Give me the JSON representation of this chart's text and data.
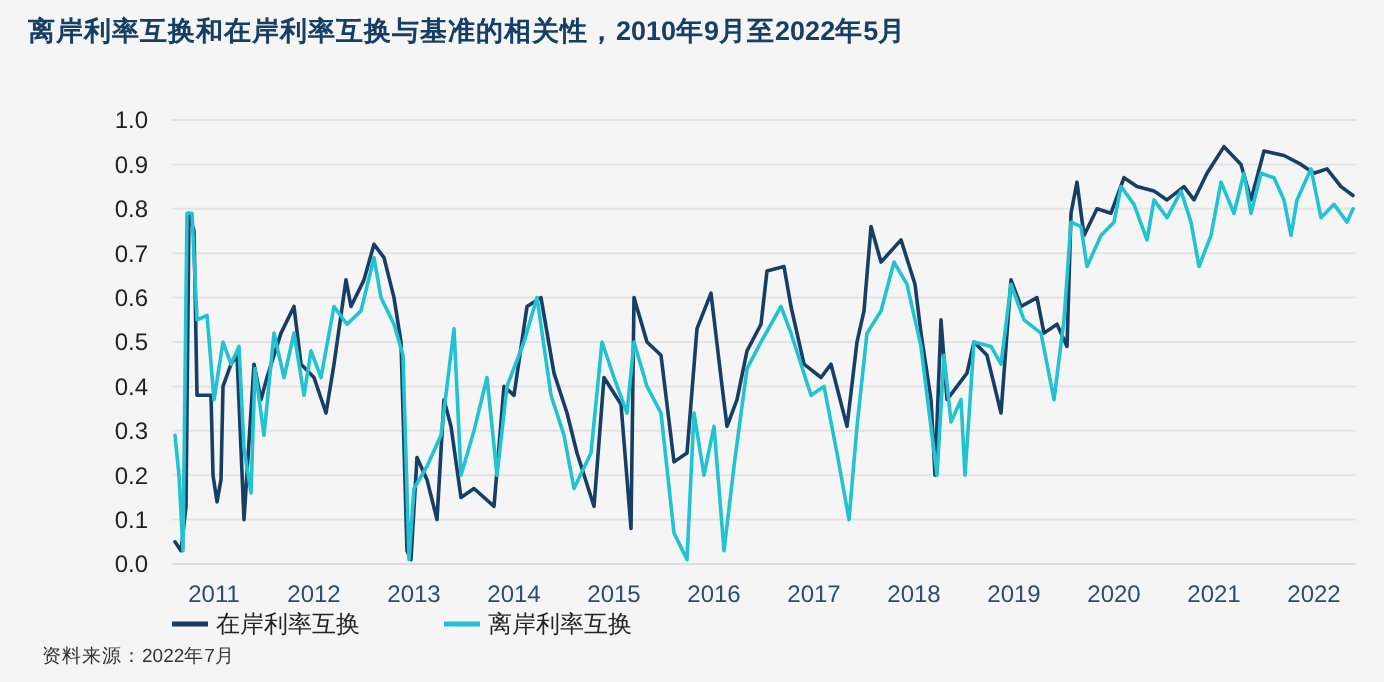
{
  "chart_data": {
    "type": "line",
    "title": "离岸利率互换和在岸利率互换与基准的相关性，2010年9月至2022年5月",
    "xlim": [
      2010.58,
      2022.42
    ],
    "xticks": [
      2011,
      2012,
      2013,
      2014,
      2015,
      2016,
      2017,
      2018,
      2019,
      2020,
      2021,
      2022
    ],
    "ylim": [
      0,
      1
    ],
    "yticks": [
      {
        "value": 0,
        "label": "0.0"
      },
      {
        "value": 0.1,
        "label": "0.1"
      },
      {
        "value": 0.2,
        "label": "0.2"
      },
      {
        "value": 0.3,
        "label": "0.3"
      },
      {
        "value": 0.4,
        "label": "0.4"
      },
      {
        "value": 0.5,
        "label": "0.5"
      },
      {
        "value": 0.6,
        "label": "0.6"
      },
      {
        "value": 0.7,
        "label": "0.7"
      },
      {
        "value": 0.8,
        "label": "0.8"
      },
      {
        "value": 0.9,
        "label": "0.9"
      },
      {
        "value": 1,
        "label": "1.0"
      }
    ],
    "grid": "y",
    "legend": "bottom",
    "marker": "none",
    "line_style": "solid",
    "annotations": [
      "资料来源：2022年7月"
    ],
    "series": [
      {
        "name": "在岸利率互换",
        "color": "#173f66",
        "x": [
          2010.61,
          2010.67,
          2010.72,
          2010.75,
          2010.8,
          2010.83,
          2010.97,
          2010.99,
          2011.03,
          2011.07,
          2011.09,
          2011.17,
          2011.23,
          2011.3,
          2011.4,
          2011.47,
          2011.53,
          2011.67,
          2011.8,
          2011.87,
          2012.0,
          2012.12,
          2012.2,
          2012.32,
          2012.37,
          2012.5,
          2012.6,
          2012.7,
          2012.8,
          2012.87,
          2012.93,
          2012.97,
          2013.03,
          2013.13,
          2013.23,
          2013.3,
          2013.37,
          2013.47,
          2013.6,
          2013.8,
          2013.9,
          2014.0,
          2014.13,
          2014.27,
          2014.4,
          2014.53,
          2014.63,
          2014.8,
          2014.9,
          2015.07,
          2015.17,
          2015.2,
          2015.33,
          2015.47,
          2015.6,
          2015.73,
          2015.83,
          2015.97,
          2016.07,
          2016.13,
          2016.23,
          2016.33,
          2016.47,
          2016.53,
          2016.7,
          2016.77,
          2016.9,
          2017.07,
          2017.17,
          2017.33,
          2017.43,
          2017.5,
          2017.57,
          2017.67,
          2017.87,
          2018.01,
          2018.07,
          2018.17,
          2018.21,
          2018.27,
          2018.33,
          2018.43,
          2018.53,
          2018.6,
          2018.73,
          2018.87,
          2018.97,
          2019.07,
          2019.23,
          2019.3,
          2019.43,
          2019.53,
          2019.57,
          2019.63,
          2019.7,
          2019.83,
          2019.97,
          2020.1,
          2020.23,
          2020.4,
          2020.53,
          2020.7,
          2020.8,
          2020.93,
          2021.1,
          2021.27,
          2021.37,
          2021.5,
          2021.7,
          2021.87,
          2022.0,
          2022.13,
          2022.27,
          2022.39
        ],
        "values": [
          0.05,
          0.03,
          0.13,
          0.79,
          0.75,
          0.38,
          0.38,
          0.2,
          0.14,
          0.19,
          0.4,
          0.45,
          0.47,
          0.1,
          0.45,
          0.37,
          0.42,
          0.52,
          0.58,
          0.45,
          0.42,
          0.34,
          0.45,
          0.64,
          0.58,
          0.64,
          0.72,
          0.69,
          0.6,
          0.5,
          0.03,
          0.01,
          0.24,
          0.19,
          0.1,
          0.37,
          0.31,
          0.15,
          0.17,
          0.13,
          0.4,
          0.38,
          0.58,
          0.6,
          0.43,
          0.34,
          0.25,
          0.13,
          0.42,
          0.36,
          0.08,
          0.6,
          0.5,
          0.47,
          0.23,
          0.25,
          0.53,
          0.61,
          0.42,
          0.31,
          0.37,
          0.48,
          0.54,
          0.66,
          0.67,
          0.58,
          0.45,
          0.42,
          0.45,
          0.31,
          0.5,
          0.57,
          0.76,
          0.68,
          0.73,
          0.63,
          0.52,
          0.37,
          0.2,
          0.55,
          0.37,
          0.4,
          0.43,
          0.5,
          0.47,
          0.34,
          0.64,
          0.58,
          0.6,
          0.52,
          0.54,
          0.49,
          0.79,
          0.86,
          0.74,
          0.8,
          0.79,
          0.87,
          0.85,
          0.84,
          0.82,
          0.85,
          0.82,
          0.88,
          0.94,
          0.9,
          0.82,
          0.93,
          0.92,
          0.9,
          0.88,
          0.89,
          0.85,
          0.83
        ]
      },
      {
        "name": "离岸利率互换",
        "color": "#22c3d0",
        "x": [
          2010.61,
          2010.65,
          2010.69,
          2010.73,
          2010.78,
          2010.83,
          2010.93,
          2011.0,
          2011.09,
          2011.17,
          2011.25,
          2011.3,
          2011.37,
          2011.41,
          2011.5,
          2011.6,
          2011.7,
          2011.8,
          2011.9,
          2011.97,
          2012.07,
          2012.2,
          2012.33,
          2012.47,
          2012.6,
          2012.67,
          2012.8,
          2012.89,
          2012.95,
          2013.0,
          2013.13,
          2013.27,
          2013.4,
          2013.47,
          2013.6,
          2013.73,
          2013.83,
          2013.93,
          2014.1,
          2014.23,
          2014.37,
          2014.5,
          2014.6,
          2014.77,
          2014.88,
          2015.0,
          2015.13,
          2015.2,
          2015.33,
          2015.47,
          2015.6,
          2015.73,
          2015.8,
          2015.9,
          2016.0,
          2016.1,
          2016.2,
          2016.33,
          2016.47,
          2016.67,
          2016.77,
          2016.87,
          2016.97,
          2017.1,
          2017.23,
          2017.35,
          2017.43,
          2017.53,
          2017.67,
          2017.8,
          2017.93,
          2018.07,
          2018.13,
          2018.23,
          2018.3,
          2018.37,
          2018.47,
          2018.51,
          2018.6,
          2018.77,
          2018.87,
          2018.97,
          2019.1,
          2019.27,
          2019.4,
          2019.5,
          2019.57,
          2019.67,
          2019.73,
          2019.87,
          2020.0,
          2020.07,
          2020.2,
          2020.33,
          2020.4,
          2020.53,
          2020.67,
          2020.77,
          2020.85,
          2020.97,
          2021.07,
          2021.2,
          2021.3,
          2021.37,
          2021.47,
          2021.6,
          2021.7,
          2021.77,
          2021.83,
          2021.97,
          2022.07,
          2022.2,
          2022.33,
          2022.39
        ],
        "values": [
          0.29,
          0.2,
          0.03,
          0.79,
          0.79,
          0.55,
          0.56,
          0.37,
          0.5,
          0.45,
          0.49,
          0.26,
          0.16,
          0.44,
          0.29,
          0.52,
          0.42,
          0.52,
          0.38,
          0.48,
          0.42,
          0.58,
          0.54,
          0.57,
          0.69,
          0.6,
          0.54,
          0.47,
          0.01,
          0.17,
          0.22,
          0.29,
          0.53,
          0.2,
          0.3,
          0.42,
          0.2,
          0.4,
          0.5,
          0.6,
          0.38,
          0.29,
          0.17,
          0.25,
          0.5,
          0.42,
          0.34,
          0.5,
          0.4,
          0.34,
          0.07,
          0.01,
          0.34,
          0.2,
          0.31,
          0.03,
          0.22,
          0.44,
          0.5,
          0.58,
          0.52,
          0.45,
          0.38,
          0.4,
          0.25,
          0.1,
          0.31,
          0.52,
          0.57,
          0.68,
          0.63,
          0.49,
          0.38,
          0.2,
          0.47,
          0.32,
          0.37,
          0.2,
          0.5,
          0.49,
          0.45,
          0.63,
          0.55,
          0.52,
          0.37,
          0.55,
          0.77,
          0.76,
          0.67,
          0.74,
          0.77,
          0.85,
          0.81,
          0.73,
          0.82,
          0.78,
          0.84,
          0.77,
          0.67,
          0.74,
          0.86,
          0.79,
          0.88,
          0.79,
          0.88,
          0.87,
          0.82,
          0.74,
          0.82,
          0.89,
          0.78,
          0.81,
          0.77,
          0.8
        ]
      }
    ]
  }
}
